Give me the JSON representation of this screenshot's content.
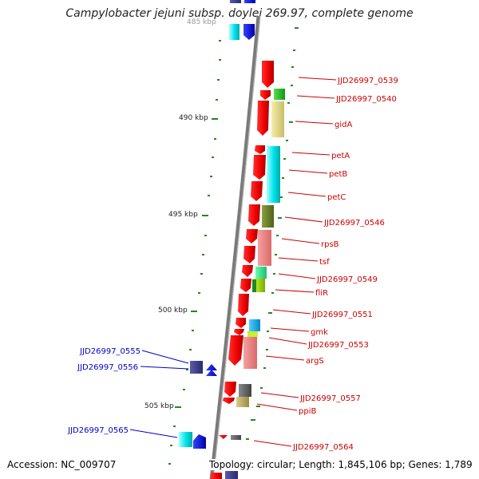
{
  "title": "Campylobacter jejuni subsp. doylei 269.97, complete genome",
  "footer": {
    "accession": "Accession: NC_009707",
    "topology": "Topology: circular; Length: 1,845,106 bp; Genes: 1,789"
  },
  "scale_labels": [
    "485 kbp",
    "490 kbp",
    "495 kbp",
    "500 kbp",
    "505 kbp"
  ],
  "genes_right": [
    {
      "name": "JJD26997_0539",
      "color": "#cc0000"
    },
    {
      "name": "JJD26997_0540",
      "color": "#cc0000"
    },
    {
      "name": "gidA",
      "color": "#cc0000"
    },
    {
      "name": "petA",
      "color": "#cc0000"
    },
    {
      "name": "petB",
      "color": "#cc0000"
    },
    {
      "name": "petC",
      "color": "#cc0000"
    },
    {
      "name": "JJD26997_0546",
      "color": "#cc0000"
    },
    {
      "name": "rpsB",
      "color": "#cc0000"
    },
    {
      "name": "tsf",
      "color": "#cc0000"
    },
    {
      "name": "JJD26997_0549",
      "color": "#cc0000"
    },
    {
      "name": "fliR",
      "color": "#cc0000"
    },
    {
      "name": "JJD26997_0551",
      "color": "#cc0000"
    },
    {
      "name": "gmk",
      "color": "#cc0000"
    },
    {
      "name": "JJD26997_0553",
      "color": "#cc0000"
    },
    {
      "name": "argS",
      "color": "#cc0000"
    },
    {
      "name": "JJD26997_0557",
      "color": "#cc0000"
    },
    {
      "name": "ppiB",
      "color": "#cc0000"
    },
    {
      "name": "JJD26997_0564",
      "color": "#cc0000"
    }
  ],
  "genes_left": [
    {
      "name": "JJD26997_0555",
      "color": "#0000cc"
    },
    {
      "name": "JJD26997_0556",
      "color": "#0000cc"
    },
    {
      "name": "JJD26997_0565",
      "color": "#0000cc"
    }
  ]
}
